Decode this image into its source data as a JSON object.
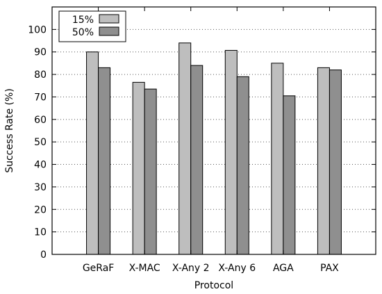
{
  "chart_data": {
    "type": "bar",
    "title": "",
    "xlabel": "Protocol",
    "ylabel": "Success Rate (%)",
    "ylim": [
      0,
      110
    ],
    "yticks": [
      0,
      10,
      20,
      30,
      40,
      50,
      60,
      70,
      80,
      90,
      100
    ],
    "grid": "horizontal-dotted",
    "legend": "top-left",
    "categories": [
      "GeRaF",
      "X-MAC",
      "X-Any 2",
      "X-Any 6",
      "AGA",
      "PAX"
    ],
    "series": [
      {
        "name": "15%",
        "color": "#bebebe",
        "values": [
          90,
          76.5,
          94,
          90.7,
          85,
          83
        ]
      },
      {
        "name": "50%",
        "color": "#8f8f8f",
        "values": [
          83,
          73.5,
          84,
          79,
          70.5,
          82
        ]
      }
    ]
  }
}
